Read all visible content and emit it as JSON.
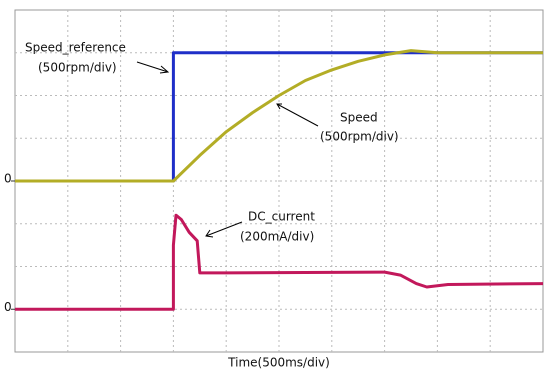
{
  "chart_data": [
    {
      "type": "line",
      "xlim": [
        0,
        10
      ],
      "ylim": [
        -4,
        4
      ],
      "yticks": [
        0
      ],
      "grid": true,
      "x_label": "Time(500ms/div)",
      "annotations": [
        "Speed_reference",
        "(500rpm/div)",
        "Speed",
        "(500rpm/div)"
      ],
      "series": [
        {
          "name": "Speed_reference",
          "color": "#1f2fc8",
          "x": [
            0,
            3,
            3,
            10
          ],
          "values": [
            0,
            0,
            3,
            3
          ]
        },
        {
          "name": "Speed",
          "color": "#b3ad26",
          "x": [
            0,
            3,
            3.5,
            4,
            4.5,
            5,
            5.5,
            6,
            6.5,
            7,
            7.5,
            8,
            10
          ],
          "values": [
            0,
            0,
            0.6,
            1.15,
            1.6,
            2.0,
            2.35,
            2.6,
            2.8,
            2.95,
            3.05,
            3.0,
            3.0
          ]
        }
      ]
    },
    {
      "type": "line",
      "xlim": [
        0,
        10
      ],
      "ylim": [
        -1,
        7
      ],
      "yticks": [
        0
      ],
      "grid": true,
      "annotations": [
        "DC_current",
        "(200mA/div)"
      ],
      "series": [
        {
          "name": "DC_current",
          "color": "#c2185b",
          "x": [
            0,
            3,
            3,
            3.05,
            3.15,
            3.3,
            3.45,
            3.5,
            4,
            7,
            7.3,
            7.6,
            7.8,
            8.2,
            10
          ],
          "values": [
            0,
            0,
            1.5,
            2.2,
            2.1,
            1.8,
            1.6,
            0.85,
            0.85,
            0.87,
            0.8,
            0.6,
            0.52,
            0.58,
            0.6
          ]
        }
      ]
    }
  ]
}
